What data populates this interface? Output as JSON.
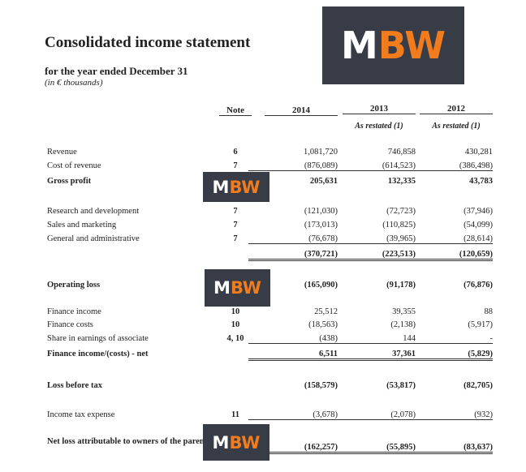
{
  "title": "Consolidated income statement",
  "subtitle": "for the year ended December 31",
  "unit": "(in € thousands)",
  "logo": {
    "left": "M",
    "right": "BW",
    "colors": {
      "bg": "#373c47",
      "accent": "#f07c1e"
    }
  },
  "columns": {
    "note": "Note",
    "years": [
      "2014",
      "2013",
      "2012"
    ],
    "restated": [
      "",
      "As restated (1)",
      "As restated (1)"
    ]
  },
  "rows": [
    {
      "label": "Revenue",
      "note": "6",
      "values": [
        "1,081,720",
        "746,858",
        "430,281"
      ]
    },
    {
      "label": "Cost of revenue",
      "note": "7",
      "values": [
        "(876,089)",
        "(614,523)",
        "(386,498)"
      ]
    },
    {
      "label": "Gross profit",
      "note": "",
      "values": [
        "205,631",
        "132,335",
        "43,783"
      ]
    },
    {
      "label": "Research and development",
      "note": "7",
      "values": [
        "(121,030)",
        "(72,723)",
        "(37,946)"
      ]
    },
    {
      "label": "Sales and marketing",
      "note": "7",
      "values": [
        "(173,013)",
        "(110,825)",
        "(54,099)"
      ]
    },
    {
      "label": "General and administrative",
      "note": "7",
      "values": [
        "(76,678)",
        "(39,965)",
        "(28,614)"
      ]
    },
    {
      "label": "",
      "note": "",
      "values": [
        "(370,721)",
        "(223,513)",
        "(120,659)"
      ]
    },
    {
      "label": "Operating loss",
      "note": "",
      "values": [
        "(165,090)",
        "(91,178)",
        "(76,876)"
      ]
    },
    {
      "label": "Finance income",
      "note": "10",
      "values": [
        "25,512",
        "39,355",
        "88"
      ]
    },
    {
      "label": "Finance costs",
      "note": "10",
      "values": [
        "(18,563)",
        "(2,138)",
        "(5,917)"
      ]
    },
    {
      "label": "Share in earnings of associate",
      "note": "4, 10",
      "values": [
        "(438)",
        "144",
        "-"
      ]
    },
    {
      "label": "Finance income/(costs) - net",
      "note": "",
      "values": [
        "6,511",
        "37,361",
        "(5,829)"
      ]
    },
    {
      "label": "Loss before tax",
      "note": "",
      "values": [
        "(158,579)",
        "(53,817)",
        "(82,705)"
      ]
    },
    {
      "label": "Income tax expense",
      "note": "11",
      "values": [
        "(3,678)",
        "(2,078)",
        "(932)"
      ]
    },
    {
      "label": "Net loss attributable to owners of the parent",
      "note": "",
      "values": [
        "(162,257)",
        "(55,895)",
        "(83,637)"
      ]
    }
  ]
}
